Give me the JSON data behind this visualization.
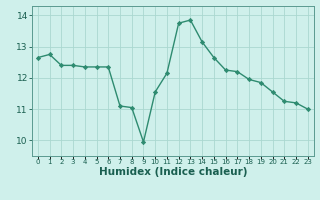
{
  "x": [
    0,
    1,
    2,
    3,
    4,
    5,
    6,
    7,
    8,
    9,
    10,
    11,
    12,
    13,
    14,
    15,
    16,
    17,
    18,
    19,
    20,
    21,
    22,
    23
  ],
  "y": [
    12.65,
    12.75,
    12.4,
    12.4,
    12.35,
    12.35,
    12.35,
    11.1,
    11.05,
    9.95,
    11.55,
    12.15,
    13.75,
    13.85,
    13.15,
    12.65,
    12.25,
    12.2,
    11.95,
    11.85,
    11.55,
    11.25,
    11.2,
    11.0
  ],
  "line_color": "#2e8b70",
  "marker": "D",
  "markersize": 2.2,
  "linewidth": 1.0,
  "xlabel": "Humidex (Indice chaleur)",
  "xlabel_fontsize": 7.5,
  "background_color": "#cff0eb",
  "grid_color": "#aad8d0",
  "ylim": [
    9.5,
    14.3
  ],
  "yticks": [
    10,
    11,
    12,
    13,
    14
  ],
  "xticks": [
    0,
    1,
    2,
    3,
    4,
    5,
    6,
    7,
    8,
    9,
    10,
    11,
    12,
    13,
    14,
    15,
    16,
    17,
    18,
    19,
    20,
    21,
    22,
    23
  ],
  "xtick_labels": [
    "0",
    "1",
    "2",
    "3",
    "4",
    "5",
    "6",
    "7",
    "8",
    "9",
    "10",
    "11",
    "12",
    "13",
    "14",
    "15",
    "16",
    "17",
    "18",
    "19",
    "20",
    "21",
    "22",
    "23"
  ],
  "text_color": "#1a5f50",
  "spine_color": "#5a9a90"
}
